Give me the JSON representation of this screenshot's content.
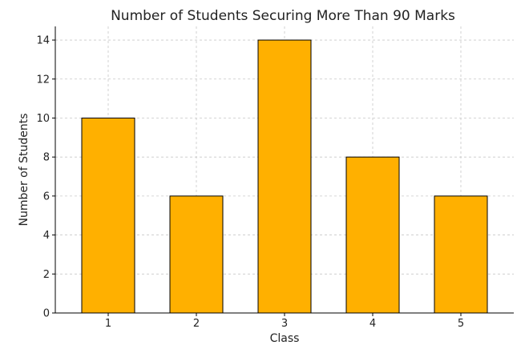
{
  "chart_data": {
    "type": "bar",
    "title": "Number of Students Securing More Than 90 Marks",
    "xlabel": "Class",
    "ylabel": "Number of Students",
    "categories": [
      "1",
      "2",
      "3",
      "4",
      "5"
    ],
    "values": [
      10,
      6,
      14,
      8,
      6
    ],
    "ylim": [
      0,
      14.7
    ],
    "yticks": [
      0,
      2,
      4,
      6,
      8,
      10,
      12,
      14
    ],
    "grid": true,
    "legend": "none"
  },
  "colors": {
    "bar_fill": "#FFB000",
    "bar_edge": "#000000",
    "grid": "#c8c8c8"
  }
}
